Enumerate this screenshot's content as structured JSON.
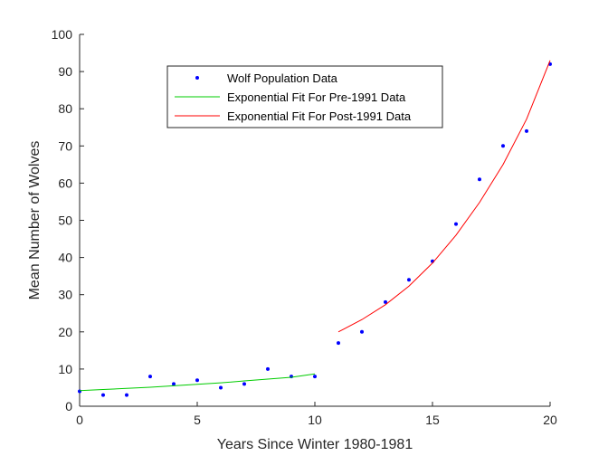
{
  "chart_data": {
    "type": "scatter",
    "title": "",
    "xlabel": "Years Since Winter 1980-1981",
    "ylabel": "Mean Number of Wolves",
    "xlim": [
      0,
      20
    ],
    "ylim": [
      0,
      100
    ],
    "xticks": [
      "0",
      "5",
      "10",
      "15",
      "20"
    ],
    "yticks": [
      "0",
      "10",
      "20",
      "30",
      "40",
      "50",
      "60",
      "70",
      "80",
      "90",
      "100"
    ],
    "grid": false,
    "legend_position": "top-center",
    "series": [
      {
        "name": "Wolf Population Data",
        "kind": "points",
        "color": "#0000ff",
        "x": [
          0,
          1,
          2,
          3,
          4,
          5,
          6,
          7,
          8,
          9,
          10,
          11,
          12,
          13,
          14,
          15,
          16,
          17,
          18,
          19,
          20
        ],
        "y": [
          4,
          3,
          3,
          8,
          6,
          7,
          5,
          6,
          10,
          8,
          8,
          17,
          20,
          28,
          34,
          39,
          49,
          61,
          70,
          74,
          92
        ]
      },
      {
        "name": "Exponential Fit For Pre-1991 Data",
        "kind": "line",
        "color": "#00cc00",
        "x": [
          0,
          1,
          2,
          3,
          4,
          5,
          6,
          7,
          8,
          9,
          10
        ],
        "y": [
          4.2,
          4.5,
          4.8,
          5.1,
          5.5,
          5.9,
          6.3,
          6.8,
          7.3,
          7.8,
          8.7
        ]
      },
      {
        "name": "Exponential Fit For Post-1991 Data",
        "kind": "line",
        "color": "#ff0000",
        "x": [
          11,
          12,
          13,
          14,
          15,
          16,
          17,
          18,
          19,
          20
        ],
        "y": [
          20,
          23.3,
          27.3,
          32.3,
          38.5,
          46.0,
          54.8,
          65.0,
          77.2,
          93
        ]
      }
    ]
  }
}
